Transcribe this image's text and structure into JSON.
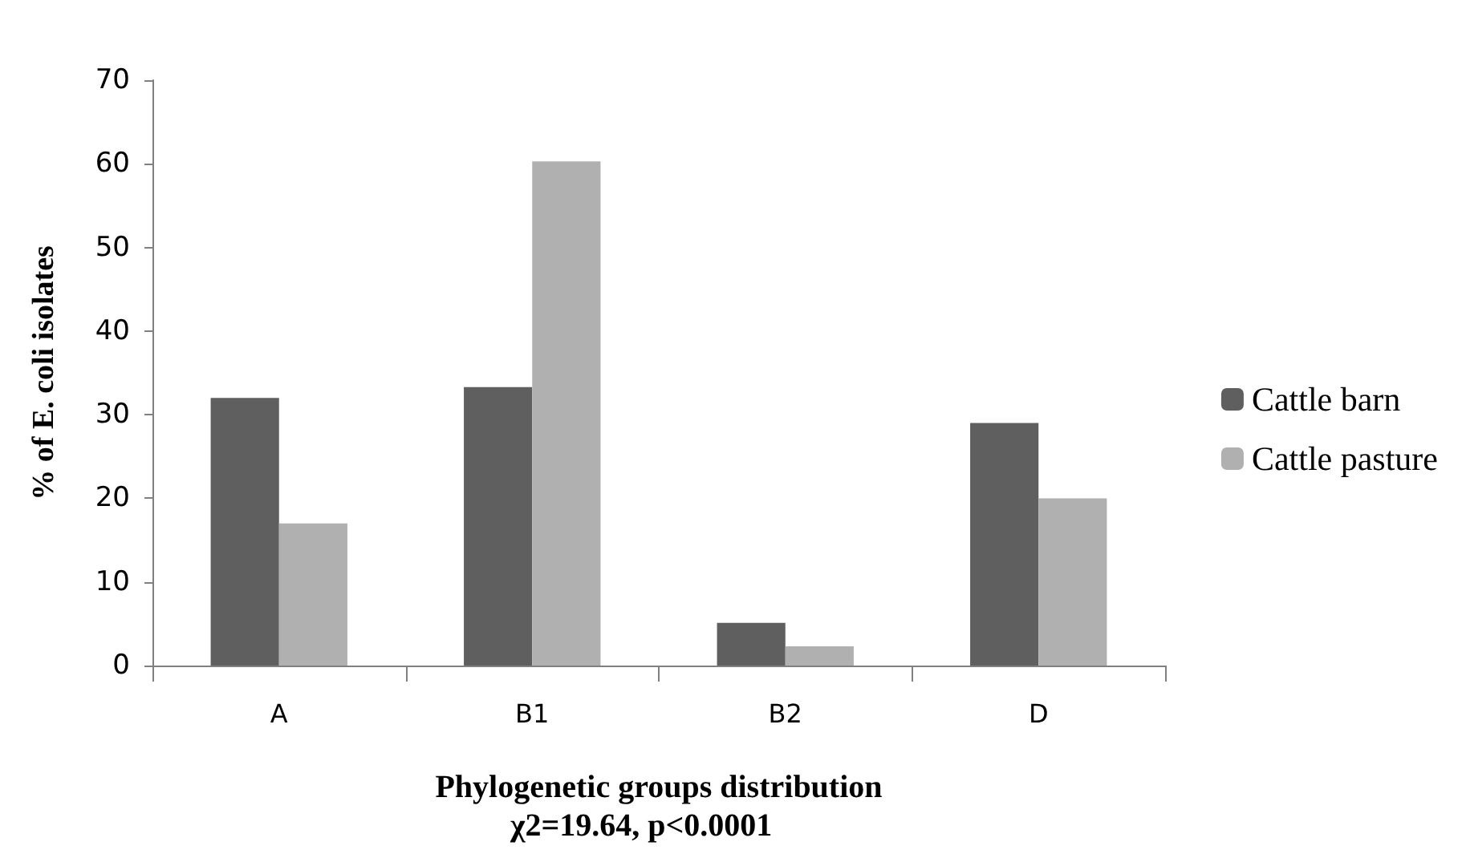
{
  "chart_data": {
    "type": "bar",
    "xlabel": "Phylogenetic groups distribution",
    "ylabel": "% of E. coli isolates",
    "annotations": [
      "χ2=19.64, p<0.0001"
    ],
    "categories": [
      "A",
      "B1",
      "B2",
      "D"
    ],
    "series": [
      {
        "name": "Cattle barn",
        "color": "#5f5f5f",
        "values": [
          32,
          33.3,
          5.1,
          29
        ]
      },
      {
        "name": "Cattle pasture",
        "color": "#b0b0b0",
        "values": [
          17,
          60.3,
          2.3,
          20
        ]
      }
    ],
    "ylim": [
      0,
      70
    ],
    "yticks": [
      0,
      10,
      20,
      30,
      40,
      50,
      60,
      70
    ],
    "grid": false,
    "legend": "right"
  }
}
